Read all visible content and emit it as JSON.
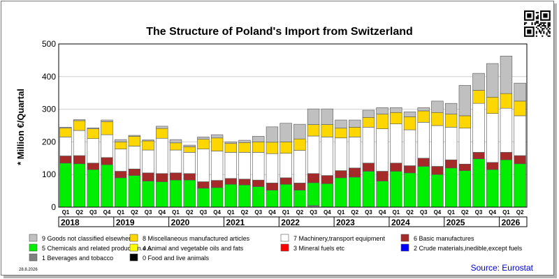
{
  "chart_data": {
    "type": "bar",
    "stacked": true,
    "title": "The Structure of Poland's Import from Switzerland",
    "ylabel": "* Million €/Quartal",
    "ylim": [
      0,
      500
    ],
    "yticks": [
      0,
      100,
      200,
      300,
      400,
      500
    ],
    "grid": true,
    "legend_position": "bottom",
    "categories": [
      "Q1",
      "Q2",
      "Q3",
      "Q4",
      "Q1",
      "Q2",
      "Q3",
      "Q4",
      "Q1",
      "Q2",
      "Q3",
      "Q4",
      "Q1",
      "Q2",
      "Q3",
      "Q4",
      "Q1",
      "Q2",
      "Q3",
      "Q4",
      "Q1",
      "Q2",
      "Q3",
      "Q4",
      "Q1",
      "Q2",
      "Q3",
      "Q4",
      "Q1",
      "Q2",
      "Q3",
      "Q4",
      "Q1",
      "Q2"
    ],
    "years": [
      "2018",
      "2019",
      "2020",
      "2021",
      "2022",
      "2023",
      "2024",
      "2025",
      "2026"
    ],
    "series": [
      {
        "name": "0 Food and live animals",
        "color": "#000000",
        "values": [
          0,
          0,
          0,
          0,
          0,
          0,
          0,
          0,
          0,
          0,
          0,
          0,
          0,
          0,
          0,
          0,
          0,
          0,
          0,
          0,
          0,
          0,
          0,
          0,
          0,
          0,
          0,
          0,
          0,
          0,
          0,
          0,
          0,
          0
        ]
      },
      {
        "name": "1 Beverages and tobacco",
        "color": "#808080",
        "values": [
          0,
          0,
          0,
          0,
          0,
          0,
          0,
          0,
          0,
          0,
          0,
          0,
          0,
          0,
          0,
          0,
          0,
          0,
          5,
          0,
          0,
          0,
          0,
          0,
          0,
          0,
          0,
          0,
          0,
          0,
          0,
          0,
          0,
          0
        ]
      },
      {
        "name": "2 Crude materials,inedible,except fuels",
        "color": "#0000ff",
        "values": [
          0,
          0,
          0,
          0,
          0,
          0,
          0,
          0,
          0,
          0,
          0,
          0,
          0,
          0,
          0,
          0,
          0,
          0,
          0,
          0,
          0,
          0,
          0,
          0,
          0,
          0,
          0,
          0,
          0,
          0,
          0,
          0,
          0,
          0
        ]
      },
      {
        "name": "3 Mineral fuels etc",
        "color": "#ff0000",
        "values": [
          0,
          0,
          0,
          0,
          0,
          0,
          0,
          0,
          0,
          0,
          0,
          0,
          0,
          0,
          0,
          0,
          0,
          0,
          0,
          0,
          0,
          0,
          0,
          0,
          0,
          0,
          0,
          0,
          0,
          0,
          0,
          0,
          0,
          0
        ]
      },
      {
        "name": "5 Chemicals and related products,n.e.s.",
        "color": "#00ee00",
        "values": [
          135,
          133,
          115,
          130,
          90,
          97,
          80,
          78,
          83,
          83,
          58,
          60,
          70,
          68,
          63,
          52,
          70,
          52,
          70,
          72,
          90,
          92,
          110,
          80,
          110,
          105,
          125,
          100,
          120,
          112,
          148,
          115,
          145,
          133
        ]
      },
      {
        "name": "6 Basic manufactures",
        "color": "#a52a2a",
        "values": [
          22,
          25,
          20,
          22,
          20,
          20,
          25,
          25,
          22,
          20,
          20,
          22,
          18,
          18,
          20,
          22,
          20,
          22,
          28,
          25,
          22,
          28,
          25,
          30,
          25,
          22,
          25,
          25,
          25,
          20,
          20,
          22,
          23,
          25
        ]
      },
      {
        "name": "7 Machinery,transport equipment",
        "color": "#ffffff",
        "values": [
          58,
          77,
          75,
          70,
          68,
          70,
          70,
          108,
          70,
          65,
          100,
          90,
          80,
          82,
          85,
          90,
          75,
          100,
          115,
          118,
          100,
          95,
          110,
          130,
          120,
          110,
          110,
          125,
          100,
          110,
          150,
          150,
          135,
          122
        ]
      },
      {
        "name": "4 Animal and vegetable oils and fats",
        "color": "#ffff00",
        "values": [
          0,
          0,
          0,
          0,
          0,
          0,
          0,
          0,
          0,
          0,
          0,
          0,
          0,
          0,
          0,
          0,
          0,
          0,
          0,
          0,
          0,
          0,
          0,
          0,
          0,
          0,
          0,
          0,
          0,
          0,
          0,
          0,
          0,
          0
        ]
      },
      {
        "name": "8 Miscellaneous manufactured articles",
        "color": "#ffd700",
        "values": [
          27,
          30,
          30,
          40,
          22,
          30,
          28,
          30,
          22,
          17,
          30,
          40,
          27,
          30,
          32,
          35,
          35,
          35,
          35,
          38,
          30,
          30,
          30,
          45,
          35,
          40,
          35,
          40,
          40,
          38,
          40,
          50,
          45,
          45
        ]
      },
      {
        "name": "9 Goods not classified elsewhere",
        "color": "#c0c0c0",
        "values": [
          3,
          3,
          3,
          5,
          7,
          3,
          3,
          7,
          10,
          5,
          7,
          10,
          5,
          7,
          17,
          47,
          57,
          45,
          48,
          48,
          25,
          22,
          22,
          20,
          15,
          15,
          10,
          35,
          33,
          93,
          52,
          103,
          115,
          55
        ]
      }
    ],
    "source": "Source: Eurostat",
    "date": "28.8.2026"
  },
  "qr_label": "qr-code"
}
